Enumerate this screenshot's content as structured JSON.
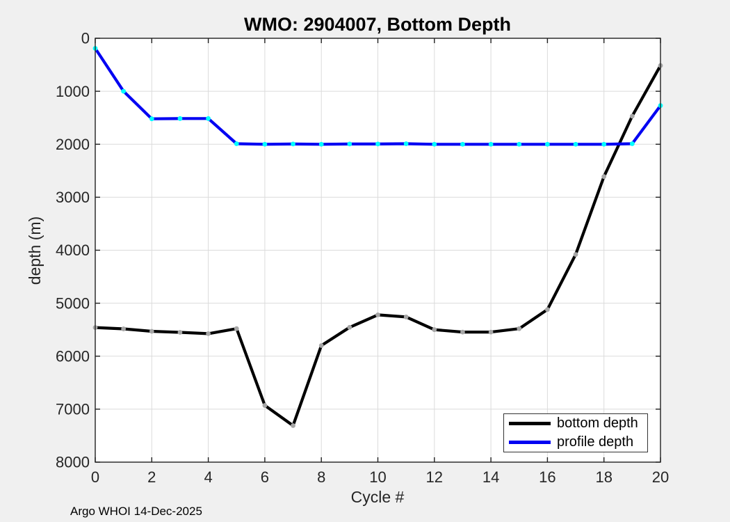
{
  "figure": {
    "title": "WMO: 2904007, Bottom Depth",
    "xlabel": "Cycle #",
    "ylabel": "depth (m)",
    "footnote": "Argo WHOI 14-Dec-2025"
  },
  "legend": {
    "position": "southeast",
    "items": [
      {
        "label": "bottom depth",
        "color": "#000000"
      },
      {
        "label": "profile depth",
        "color": "#0202f2"
      }
    ]
  },
  "colors": {
    "figure_background": "#f0f0f0",
    "plot_background": "#ffffff",
    "grid": "#dbdbdb",
    "axes_frame": "#1f1f1f",
    "bottom_depth_line": "#000000",
    "bottom_depth_marker": "#a6a6a6",
    "profile_depth_line": "#0202f2",
    "profile_depth_marker": "#00ffff"
  },
  "chart_data": {
    "type": "line",
    "title": "WMO: 2904007, Bottom Depth",
    "xlabel": "Cycle #",
    "ylabel": "depth (m)",
    "x": [
      0,
      1,
      2,
      3,
      4,
      5,
      6,
      7,
      8,
      9,
      10,
      11,
      12,
      13,
      14,
      15,
      16,
      17,
      18,
      19,
      20
    ],
    "series": [
      {
        "name": "bottom depth",
        "color": "#000000",
        "marker_color": "#a6a6a6",
        "values": [
          5460,
          5485,
          5530,
          5550,
          5575,
          5480,
          6930,
          7310,
          5800,
          5455,
          5220,
          5260,
          5500,
          5545,
          5545,
          5480,
          5120,
          4080,
          2610,
          1470,
          515
        ]
      },
      {
        "name": "profile depth",
        "color": "#0202f2",
        "marker_color": "#00ffff",
        "values": [
          190,
          1000,
          1520,
          1515,
          1515,
          1990,
          2000,
          1995,
          2000,
          1995,
          1995,
          1990,
          2000,
          2000,
          2000,
          2000,
          2000,
          2000,
          2000,
          1990,
          1270
        ]
      }
    ],
    "xlim": [
      0,
      20
    ],
    "ylim": [
      0,
      8000
    ],
    "y_axis_reversed": true,
    "y_increases_downward": true,
    "xticks": [
      0,
      2,
      4,
      6,
      8,
      10,
      12,
      14,
      16,
      18,
      20
    ],
    "yticks": [
      0,
      1000,
      2000,
      3000,
      4000,
      5000,
      6000,
      7000,
      8000
    ],
    "grid": true,
    "legend_position": "southeast"
  }
}
